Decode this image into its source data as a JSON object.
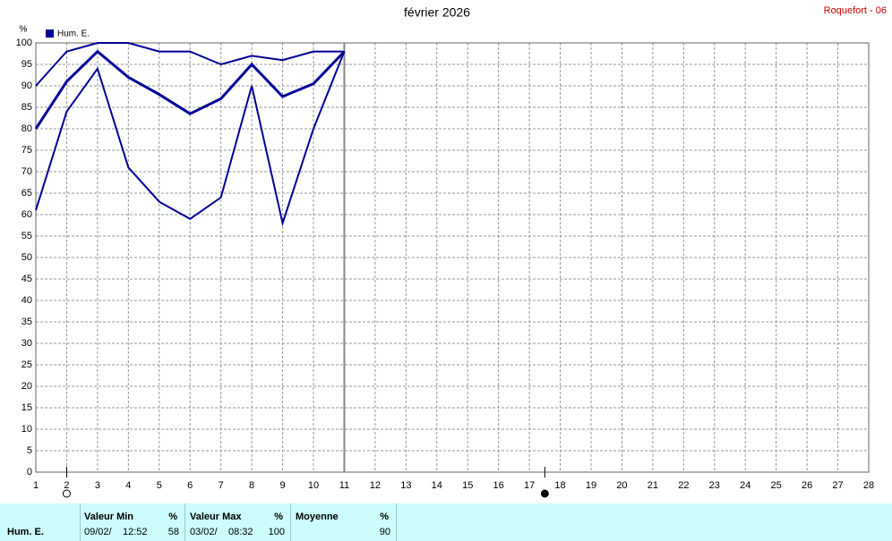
{
  "chart_data": {
    "type": "line",
    "title": "février 2026",
    "station": "Roquefort - 06",
    "y_unit": "%",
    "legend_label": "Hum. E.",
    "legend_color": "#000099",
    "x": [
      1,
      2,
      3,
      4,
      5,
      6,
      7,
      8,
      9,
      10,
      11
    ],
    "series": [
      {
        "color": "#000099",
        "width": 2,
        "values": [
          90,
          98,
          100,
          100,
          98,
          98,
          95,
          97,
          96,
          98,
          98
        ]
      },
      {
        "color": "#000099",
        "width": 3,
        "values": [
          80,
          91,
          98,
          92,
          88,
          83.5,
          87,
          95,
          87.5,
          90.5,
          98
        ]
      },
      {
        "color": "#000099",
        "width": 2,
        "values": [
          61,
          84,
          94,
          71,
          63,
          59,
          64,
          90,
          58,
          80,
          98
        ]
      }
    ],
    "xlim": [
      1,
      28
    ],
    "xticks": [
      1,
      2,
      3,
      4,
      5,
      6,
      7,
      8,
      9,
      10,
      11,
      12,
      13,
      14,
      15,
      16,
      17,
      18,
      19,
      20,
      21,
      22,
      23,
      24,
      25,
      26,
      27,
      28
    ],
    "ylim": [
      0,
      100
    ],
    "yticks": [
      0,
      5,
      10,
      15,
      20,
      25,
      30,
      35,
      40,
      45,
      50,
      55,
      60,
      65,
      70,
      75,
      80,
      85,
      90,
      95,
      100
    ],
    "grid": true,
    "current_day": 11,
    "moon_phases": [
      {
        "x": 2,
        "phase": "full"
      },
      {
        "x": 17.5,
        "phase": "new"
      }
    ]
  },
  "table": {
    "row_label": "Hum. E.",
    "columns": [
      {
        "header": "Valeur Min",
        "unit": "%",
        "date": "09/02/",
        "time": "12:52",
        "value": "58"
      },
      {
        "header": "Valeur Max",
        "unit": "%",
        "date": "03/02/",
        "time": "08:32",
        "value": "100"
      },
      {
        "header": "Moyenne",
        "unit": "%",
        "value": "90"
      }
    ]
  }
}
